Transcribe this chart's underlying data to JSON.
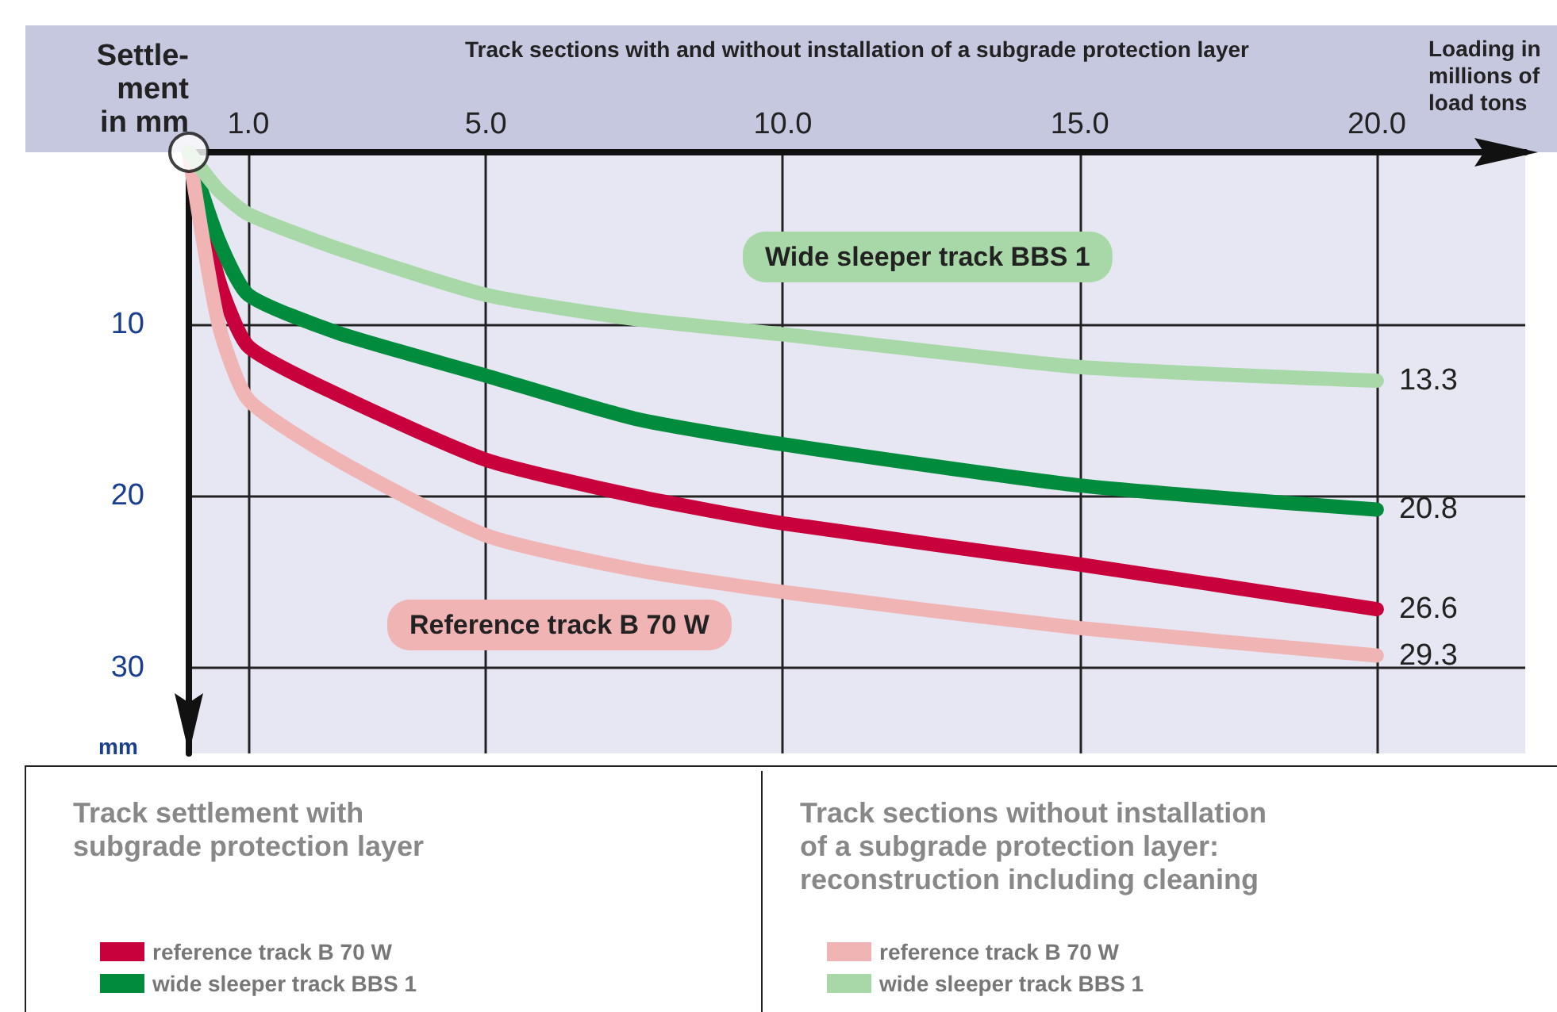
{
  "chart_data": {
    "type": "line",
    "xlabel": "Track sections with and without installation of a subgrade protection layer",
    "ylabel": "Settle-\nment\nin mm",
    "x": [
      0,
      0.5,
      1,
      2.5,
      5,
      7.5,
      10,
      15,
      20
    ],
    "series": [
      {
        "name": "reference track B 70 W",
        "color": "#c8003c",
        "values": [
          0,
          7.4,
          11.3,
          14.1,
          17.9,
          20,
          21.6,
          24,
          26.6
        ],
        "value_labels": [
          null,
          null,
          null,
          null,
          null,
          null,
          null,
          null,
          "26.6"
        ]
      },
      {
        "name": "wide sleeper track BBS 1",
        "color": "#008c3c",
        "values": [
          0,
          5.1,
          8.3,
          10.5,
          13,
          15.5,
          17,
          19.4,
          20.8
        ],
        "value_labels": [
          null,
          null,
          null,
          null,
          null,
          null,
          null,
          null,
          "20.8"
        ]
      },
      {
        "name": "reference track B 70 W",
        "color": "#f0b4b4",
        "values": [
          0,
          10,
          14.4,
          17.9,
          22.3,
          24.3,
          25.6,
          27.7,
          29.3
        ],
        "value_labels": [
          null,
          null,
          null,
          null,
          null,
          null,
          null,
          null,
          "29.3"
        ]
      },
      {
        "name": "wide sleeper track BBS 1",
        "color": "#a8d8a8",
        "values": [
          0,
          2.2,
          3.6,
          5.6,
          8.3,
          9.7,
          10.6,
          12.5,
          13.3
        ],
        "value_labels": [
          null,
          null,
          null,
          null,
          null,
          null,
          null,
          null,
          "13.3"
        ]
      }
    ],
    "xlim": [
      0,
      22.5
    ],
    "xticks": [
      {
        "value": 1,
        "label": "1.0"
      },
      {
        "value": 5,
        "label": "5.0"
      },
      {
        "value": 10,
        "label": "10.0"
      },
      {
        "value": 15,
        "label": "15.0"
      },
      {
        "value": 20,
        "label": "20.0"
      }
    ],
    "ylim": [
      35,
      0
    ],
    "yticks": [
      10,
      20,
      30
    ],
    "grid": true,
    "legend": "bottom",
    "marker": "none",
    "line_style": "solid",
    "annotations": [
      "Loading in\nmillions of\nload tons",
      "mm",
      "Track settlement with\nsubgrade protection layer",
      "Track sections without installation\nof a subgrade protection layer:\nreconstruction including cleaning",
      "Wide sleeper track BBS 1",
      "Reference track B 70 W"
    ]
  }
}
